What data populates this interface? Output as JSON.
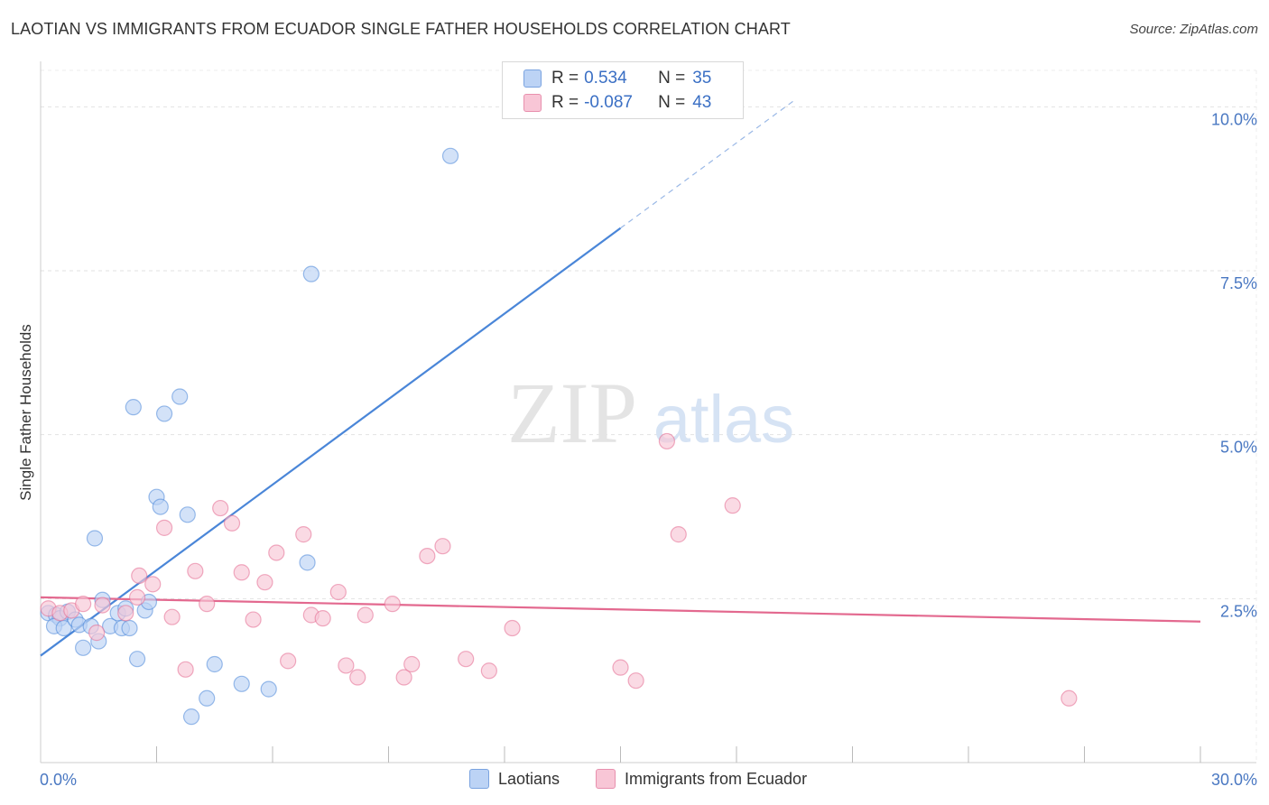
{
  "title": "LAOTIAN VS IMMIGRANTS FROM ECUADOR SINGLE FATHER HOUSEHOLDS CORRELATION CHART",
  "source": "Source: ZipAtlas.com",
  "watermark": {
    "part1": "ZIP",
    "part2": "atlas"
  },
  "legend_top": [
    {
      "r_label": "R =",
      "r_value": "0.534",
      "n_label": "N =",
      "n_value": "35",
      "fill": "#bcd3f5",
      "stroke": "#7aa3e0"
    },
    {
      "r_label": "R =",
      "r_value": "-0.087",
      "n_label": "N =",
      "n_value": "43",
      "fill": "#f8c6d6",
      "stroke": "#e890ae"
    }
  ],
  "legend_bottom": [
    {
      "label": "Laotians",
      "fill": "#bcd3f5",
      "stroke": "#7aa3e0"
    },
    {
      "label": "Immigrants from Ecuador",
      "fill": "#f8c6d6",
      "stroke": "#e890ae"
    }
  ],
  "chart_data": {
    "type": "scatter",
    "title": "LAOTIAN VS IMMIGRANTS FROM ECUADOR SINGLE FATHER HOUSEHOLDS CORRELATION CHART",
    "xlabel": "",
    "ylabel": "Single Father Households",
    "xlim": [
      0,
      30
    ],
    "ylim": [
      0,
      10.5
    ],
    "x_tick_labels": [
      "0.0%",
      "30.0%"
    ],
    "y_ticks": [
      2.5,
      5.0,
      7.5,
      10.0
    ],
    "y_tick_labels": [
      "2.5%",
      "5.0%",
      "7.5%",
      "10.0%"
    ],
    "grid": true,
    "legend_position": "top-center",
    "series": [
      {
        "name": "Laotians",
        "color": "#4a86d8",
        "fill": "#bcd3f5",
        "points": [
          [
            0.2,
            2.28
          ],
          [
            0.4,
            2.25
          ],
          [
            0.5,
            2.2
          ],
          [
            0.7,
            2.3
          ],
          [
            0.35,
            2.08
          ],
          [
            0.6,
            2.05
          ],
          [
            0.9,
            2.18
          ],
          [
            1.0,
            2.1
          ],
          [
            1.3,
            2.08
          ],
          [
            1.1,
            1.75
          ],
          [
            1.5,
            1.85
          ],
          [
            1.8,
            2.08
          ],
          [
            1.6,
            2.48
          ],
          [
            2.1,
            2.05
          ],
          [
            2.3,
            2.05
          ],
          [
            2.0,
            2.28
          ],
          [
            2.2,
            2.35
          ],
          [
            2.7,
            2.32
          ],
          [
            2.8,
            2.45
          ],
          [
            2.5,
            1.58
          ],
          [
            1.4,
            3.42
          ],
          [
            3.0,
            4.05
          ],
          [
            3.1,
            3.9
          ],
          [
            3.8,
            3.78
          ],
          [
            2.4,
            5.42
          ],
          [
            3.2,
            5.32
          ],
          [
            3.6,
            5.58
          ],
          [
            4.5,
            1.5
          ],
          [
            4.3,
            0.98
          ],
          [
            3.9,
            0.7
          ],
          [
            5.2,
            1.2
          ],
          [
            5.9,
            1.12
          ],
          [
            6.9,
            3.05
          ],
          [
            7.0,
            7.45
          ],
          [
            10.6,
            9.25
          ]
        ],
        "trend": {
          "x": [
            0,
            15
          ],
          "y": [
            1.63,
            8.15
          ],
          "dashed_to": [
            19.5,
            10.1
          ]
        }
      },
      {
        "name": "Immigrants from Ecuador",
        "color": "#e3698f",
        "fill": "#f8c6d6",
        "points": [
          [
            0.2,
            2.35
          ],
          [
            0.5,
            2.28
          ],
          [
            0.8,
            2.32
          ],
          [
            1.1,
            2.42
          ],
          [
            1.45,
            1.98
          ],
          [
            1.6,
            2.4
          ],
          [
            2.2,
            2.28
          ],
          [
            2.5,
            2.52
          ],
          [
            2.55,
            2.85
          ],
          [
            2.9,
            2.72
          ],
          [
            3.2,
            3.58
          ],
          [
            3.4,
            2.22
          ],
          [
            3.75,
            1.42
          ],
          [
            4.0,
            2.92
          ],
          [
            4.3,
            2.42
          ],
          [
            4.65,
            3.88
          ],
          [
            4.95,
            3.65
          ],
          [
            5.2,
            2.9
          ],
          [
            5.5,
            2.18
          ],
          [
            5.8,
            2.75
          ],
          [
            6.1,
            3.2
          ],
          [
            6.4,
            1.55
          ],
          [
            6.8,
            3.48
          ],
          [
            7.0,
            2.25
          ],
          [
            7.3,
            2.2
          ],
          [
            7.7,
            2.6
          ],
          [
            7.9,
            1.48
          ],
          [
            8.2,
            1.3
          ],
          [
            8.4,
            2.25
          ],
          [
            9.1,
            2.42
          ],
          [
            9.4,
            1.3
          ],
          [
            9.6,
            1.5
          ],
          [
            10.0,
            3.15
          ],
          [
            10.4,
            3.3
          ],
          [
            11.0,
            1.58
          ],
          [
            11.6,
            1.4
          ],
          [
            12.2,
            2.05
          ],
          [
            15.0,
            1.45
          ],
          [
            15.4,
            1.25
          ],
          [
            16.2,
            4.9
          ],
          [
            16.5,
            3.48
          ],
          [
            17.9,
            3.92
          ],
          [
            26.6,
            0.98
          ]
        ],
        "trend": {
          "x": [
            0,
            30
          ],
          "y": [
            2.52,
            2.15
          ]
        }
      }
    ]
  }
}
